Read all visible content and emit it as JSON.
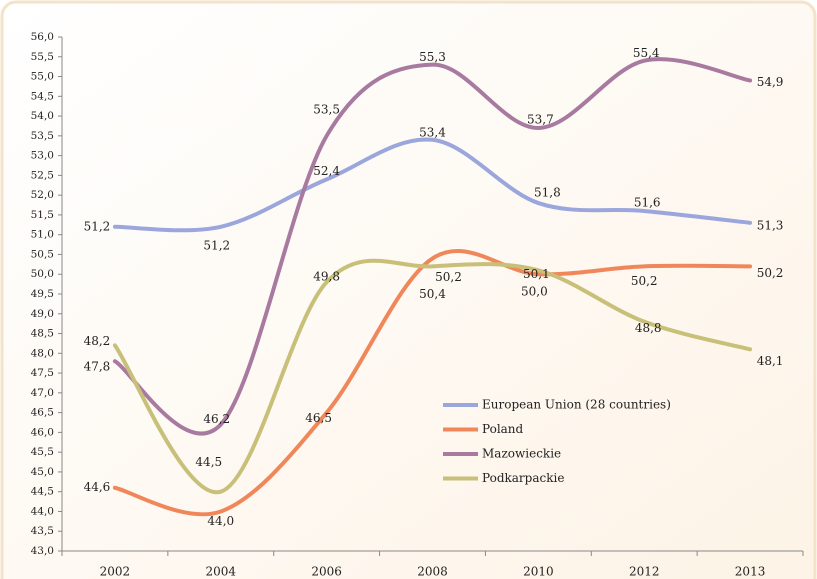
{
  "chart_data": {
    "type": "line",
    "categories": [
      "2002",
      "2004",
      "2006",
      "2008",
      "2010",
      "2012",
      "2013"
    ],
    "series": [
      {
        "name": "European Union (28 countries)",
        "color": "#9aa6dc",
        "values": [
          51.2,
          51.2,
          52.4,
          53.4,
          51.8,
          51.6,
          51.3
        ],
        "value_labels": [
          "51,2",
          "51,2",
          "52,4",
          "53,4",
          "51,8",
          "51,6",
          "51,3"
        ]
      },
      {
        "name": "Poland",
        "color": "#f0875a",
        "values": [
          44.6,
          44.0,
          46.5,
          50.4,
          50.0,
          50.2,
          50.2
        ],
        "value_labels": [
          "44,6",
          "44,0",
          "46,5",
          "50,4",
          "50,0",
          "50,2",
          "50,2"
        ]
      },
      {
        "name": "Mazowieckie",
        "color": "#a87aa0",
        "values": [
          47.8,
          46.2,
          53.5,
          55.3,
          53.7,
          55.4,
          54.9
        ],
        "value_labels": [
          "47,8",
          "46,2",
          "53,5",
          "55,3",
          "53,7",
          "55,4",
          "54,9"
        ]
      },
      {
        "name": "Podkarpackie",
        "color": "#c8bf78",
        "values": [
          48.2,
          44.5,
          49.8,
          50.2,
          50.1,
          48.8,
          48.1
        ],
        "value_labels": [
          "48,2",
          "44,5",
          "49,8",
          "50,2",
          "50,1",
          "48,8",
          "48,1"
        ]
      }
    ],
    "ylim": [
      43.0,
      56.0
    ],
    "yticks": [
      {
        "value": 43.0,
        "label": "43,0"
      },
      {
        "value": 43.5,
        "label": "43,5"
      },
      {
        "value": 44.0,
        "label": "44,0"
      },
      {
        "value": 44.5,
        "label": "44,5"
      },
      {
        "value": 45.0,
        "label": "45,0"
      },
      {
        "value": 45.5,
        "label": "45,5"
      },
      {
        "value": 46.0,
        "label": "46,0"
      },
      {
        "value": 46.5,
        "label": "46,5"
      },
      {
        "value": 47.0,
        "label": "47,0"
      },
      {
        "value": 47.5,
        "label": "47,5"
      },
      {
        "value": 48.0,
        "label": "48,0"
      },
      {
        "value": 48.5,
        "label": "48,5"
      },
      {
        "value": 49.0,
        "label": "49,0"
      },
      {
        "value": 49.5,
        "label": "49,5"
      },
      {
        "value": 50.0,
        "label": "50,0"
      },
      {
        "value": 50.5,
        "label": "50,5"
      },
      {
        "value": 51.0,
        "label": "51,0"
      },
      {
        "value": 51.5,
        "label": "51,5"
      },
      {
        "value": 52.0,
        "label": "52,0"
      },
      {
        "value": 52.5,
        "label": "52,5"
      },
      {
        "value": 53.0,
        "label": "53,0"
      },
      {
        "value": 53.5,
        "label": "53,5"
      },
      {
        "value": 54.0,
        "label": "54,0"
      },
      {
        "value": 54.5,
        "label": "54,5"
      },
      {
        "value": 55.0,
        "label": "55,0"
      },
      {
        "value": 55.5,
        "label": "55,5"
      },
      {
        "value": 56.0,
        "label": "56,0"
      }
    ],
    "grid": false,
    "legend": "center-right"
  }
}
